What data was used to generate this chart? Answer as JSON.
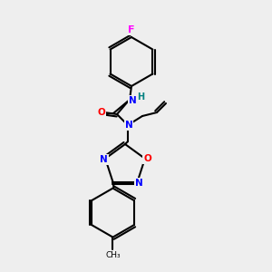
{
  "bg_color": "#eeeeee",
  "bond_color": "#000000",
  "bond_width": 1.5,
  "atom_colors": {
    "N": "#0000ff",
    "O": "#ff0000",
    "F": "#ff00ff",
    "H": "#008080",
    "C": "#000000"
  },
  "font_size": 7.5
}
